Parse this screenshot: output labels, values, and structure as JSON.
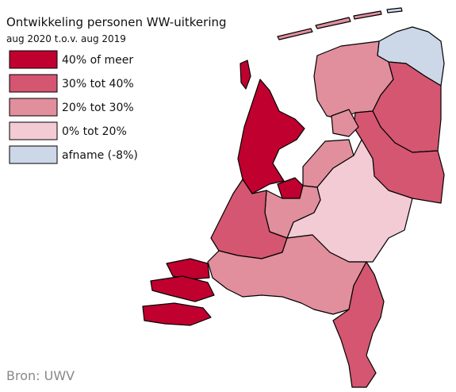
{
  "title": "Ontwikkeling personen WW-uitkering",
  "subtitle": "aug 2020 t.o.v. aug 2019",
  "legend": [
    {
      "label": "40% of meer",
      "color": "#c0002f"
    },
    {
      "label": "30% tot 40%",
      "color": "#d45670"
    },
    {
      "label": "20% tot 30%",
      "color": "#e18e9d"
    },
    {
      "label": "0% tot 20%",
      "color": "#f3cbd5"
    },
    {
      "label": "afname (-8%)",
      "color": "#ccd7e8"
    }
  ],
  "source": "Bron: UWV"
}
